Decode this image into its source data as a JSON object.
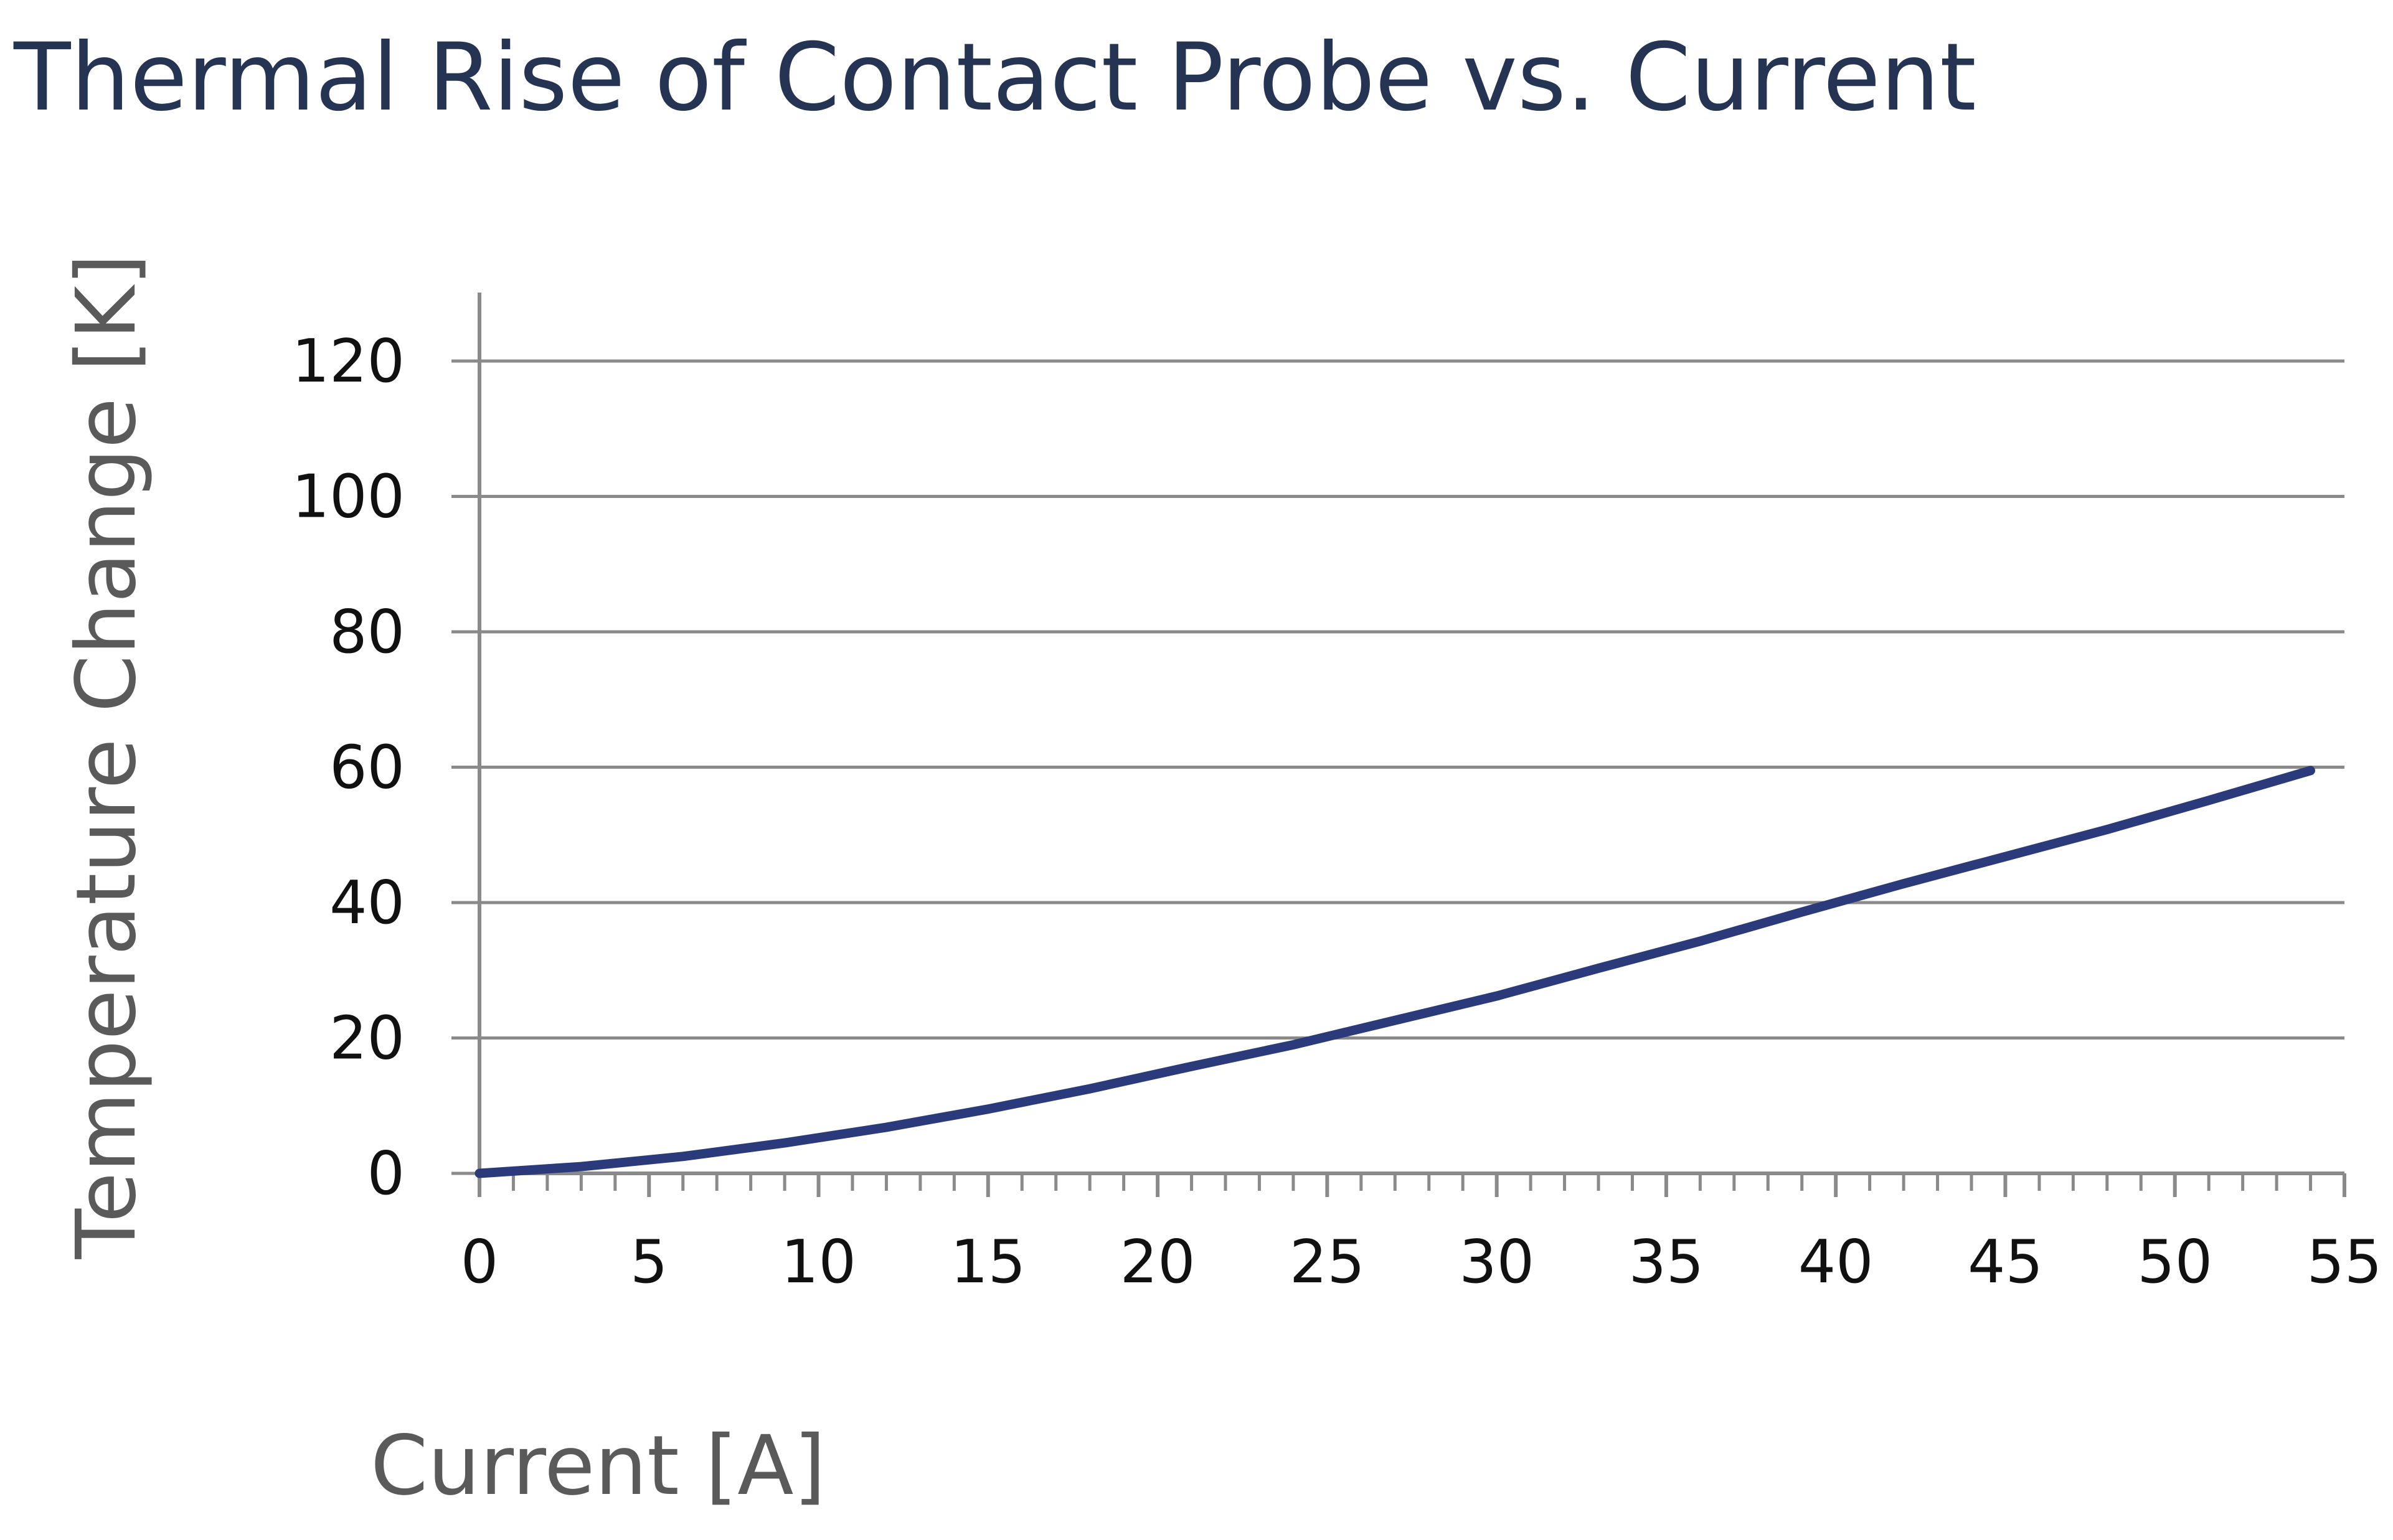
{
  "chart_data": {
    "type": "line",
    "title": "Thermal Rise of Contact Probe vs. Current",
    "xlabel": "Current [A]",
    "ylabel": "Temperature Change [K]",
    "xlim": [
      0,
      55
    ],
    "ylim": [
      0,
      120
    ],
    "x_ticks": [
      0,
      5,
      10,
      15,
      20,
      25,
      30,
      35,
      40,
      45,
      50,
      55
    ],
    "y_ticks": [
      0,
      20,
      40,
      60,
      80,
      100,
      120
    ],
    "grid": true,
    "legend": "none",
    "colors": {
      "series": "#2b3a7a",
      "grid": "#8a8a8a",
      "axis": "#8a8a8a"
    },
    "series": [
      {
        "name": "Temperature Change",
        "x": [
          0,
          3,
          6,
          9,
          12,
          15,
          18,
          21,
          24,
          27,
          30,
          33,
          36,
          39,
          42,
          45,
          48,
          51,
          54
        ],
        "y": [
          0,
          1,
          2.5,
          4.5,
          6.8,
          9.5,
          12.5,
          15.8,
          19,
          22.6,
          26.2,
          30.3,
          34.3,
          38.6,
          42.8,
          46.8,
          50.8,
          55.1,
          59.5
        ]
      }
    ]
  }
}
